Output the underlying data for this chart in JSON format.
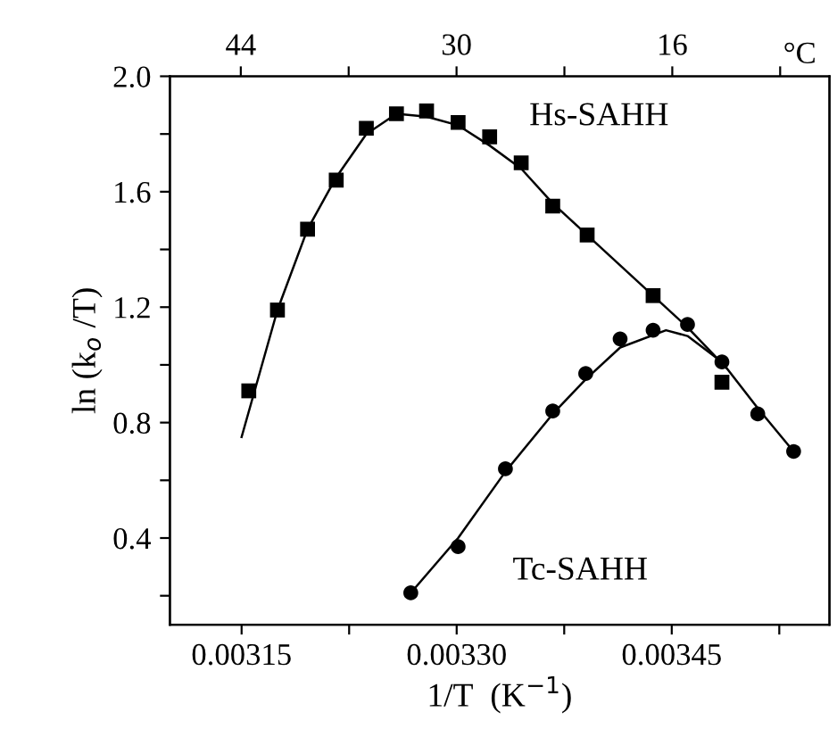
{
  "chart_data": {
    "type": "scatter",
    "xlabel": "1/T  (K$^{−1}$)",
    "ylabel": "ln (k$_{o}$ /T)",
    "x2label": "°C",
    "xlim": [
      0.0031,
      0.00356
    ],
    "ylim": [
      0.1,
      2.0
    ],
    "xticks": [
      {
        "value": 0.00315,
        "label": "0.00315"
      },
      {
        "value": 0.003225,
        "label": null
      },
      {
        "value": 0.0033,
        "label": "0.00330"
      },
      {
        "value": 0.003375,
        "label": null
      },
      {
        "value": 0.00345,
        "label": "0.00345"
      },
      {
        "value": 0.003525,
        "label": null
      }
    ],
    "x2lim": [
      48.6,
      5.8
    ],
    "x2ticks": [
      44,
      {
        "value": 37,
        "label": null
      },
      30,
      {
        "value": 23,
        "label": null
      },
      16,
      {
        "value": 9,
        "label": null
      }
    ],
    "yticks": [
      {
        "value": 0.2,
        "label": null
      },
      0.4,
      {
        "value": 0.6,
        "label": null
      },
      0.8,
      {
        "value": 1.0,
        "label": null
      },
      1.2,
      {
        "value": 1.4,
        "label": null
      },
      1.6,
      {
        "value": 1.8,
        "label": null
      },
      {
        "value": 2.0,
        "label": "2.0"
      }
    ],
    "grid": false,
    "series": [
      {
        "name": "Hs-SAHH",
        "marker": "square",
        "color": "#000000",
        "x": [
          0.003155,
          0.003175,
          0.003196,
          0.003216,
          0.003237,
          0.003258,
          0.003279,
          0.003301,
          0.003323,
          0.003345,
          0.003367,
          0.003391,
          0.003437,
          0.003485
        ],
        "values": [
          0.91,
          1.19,
          1.47,
          1.64,
          1.82,
          1.87,
          1.88,
          1.84,
          1.79,
          1.7,
          1.55,
          1.45,
          1.24,
          0.94
        ]
      },
      {
        "type": "line",
        "line_style": "solid",
        "color": "#000000",
        "x": [
          0.00315,
          0.003175,
          0.003196,
          0.003216,
          0.003237,
          0.003258,
          0.003279,
          0.003301,
          0.003323,
          0.003345,
          0.003367,
          0.003391,
          0.003437,
          0.003461,
          0.003488
        ],
        "values": [
          0.75,
          1.19,
          1.47,
          1.65,
          1.8,
          1.87,
          1.86,
          1.83,
          1.76,
          1.68,
          1.56,
          1.45,
          1.24,
          1.13,
          0.99
        ]
      },
      {
        "name": "Tc-SAHH",
        "marker": "circle",
        "color": "#000000",
        "x": [
          0.003268,
          0.003301,
          0.003334,
          0.003367,
          0.00339,
          0.003414,
          0.003437,
          0.003461,
          0.003485,
          0.00351,
          0.003535
        ],
        "values": [
          0.21,
          0.37,
          0.64,
          0.84,
          0.97,
          1.09,
          1.12,
          1.14,
          1.01,
          0.83,
          0.7
        ]
      },
      {
        "type": "line",
        "line_style": "solid",
        "color": "#000000",
        "x": [
          0.003268,
          0.003301,
          0.003334,
          0.003367,
          0.00339,
          0.003414,
          0.003446,
          0.003461,
          0.003485,
          0.00351,
          0.003535
        ],
        "values": [
          0.21,
          0.4,
          0.63,
          0.83,
          0.95,
          1.06,
          1.12,
          1.1,
          1.01,
          0.85,
          0.7
        ]
      }
    ]
  }
}
